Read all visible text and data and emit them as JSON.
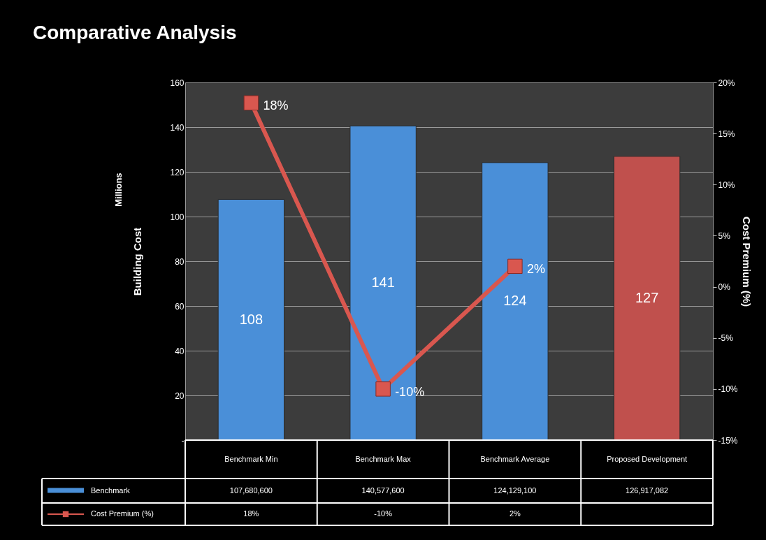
{
  "chart_data": {
    "type": "bar",
    "title": "Comparative Analysis",
    "ylabel": "Building Cost",
    "y2label": "Cost Premium (%)",
    "categories": [
      "Benchmark Min",
      "Benchmark Max",
      "Benchmark Average",
      "Proposed Development"
    ],
    "series": [
      {
        "name": "Benchmark",
        "color": "#4a8fd8",
        "colors": [
          "#4a8fd8",
          "#4a8fd8",
          "#4a8fd8",
          "#c0504d"
        ],
        "values": [
          107.6806,
          140.5776,
          124.1291,
          126.917082
        ],
        "value_labels": [
          "108",
          "141",
          "124",
          "127"
        ]
      },
      {
        "name": "Cost Premium (%)",
        "type": "line",
        "axis": "y2",
        "color": "#d9574f",
        "marker": "square",
        "values": [
          18,
          -10,
          2,
          null
        ],
        "value_labels": [
          "18%",
          "-10%",
          "2%",
          null
        ]
      }
    ],
    "ylim": [
      0,
      160
    ],
    "yticks": [
      {
        "value": 0,
        "label": "-"
      },
      20,
      40,
      60,
      80,
      100,
      120,
      140,
      160
    ],
    "y2lim": [
      -15,
      20
    ],
    "y2ticks": [
      {
        "value": -15,
        "label": "-15%"
      },
      {
        "value": -10,
        "label": "-10%"
      },
      {
        "value": -5,
        "label": "-5%"
      },
      {
        "value": 0,
        "label": "0%"
      },
      {
        "value": 5,
        "label": "5%"
      },
      {
        "value": 10,
        "label": "10%"
      },
      {
        "value": 15,
        "label": "15%"
      },
      {
        "value": 20,
        "label": "20%"
      }
    ],
    "grid": true,
    "legend": "bottom",
    "annotations": [
      "Millions",
      "107,680,600",
      "140,577,600",
      "124,129,100",
      "126,917,082"
    ]
  }
}
